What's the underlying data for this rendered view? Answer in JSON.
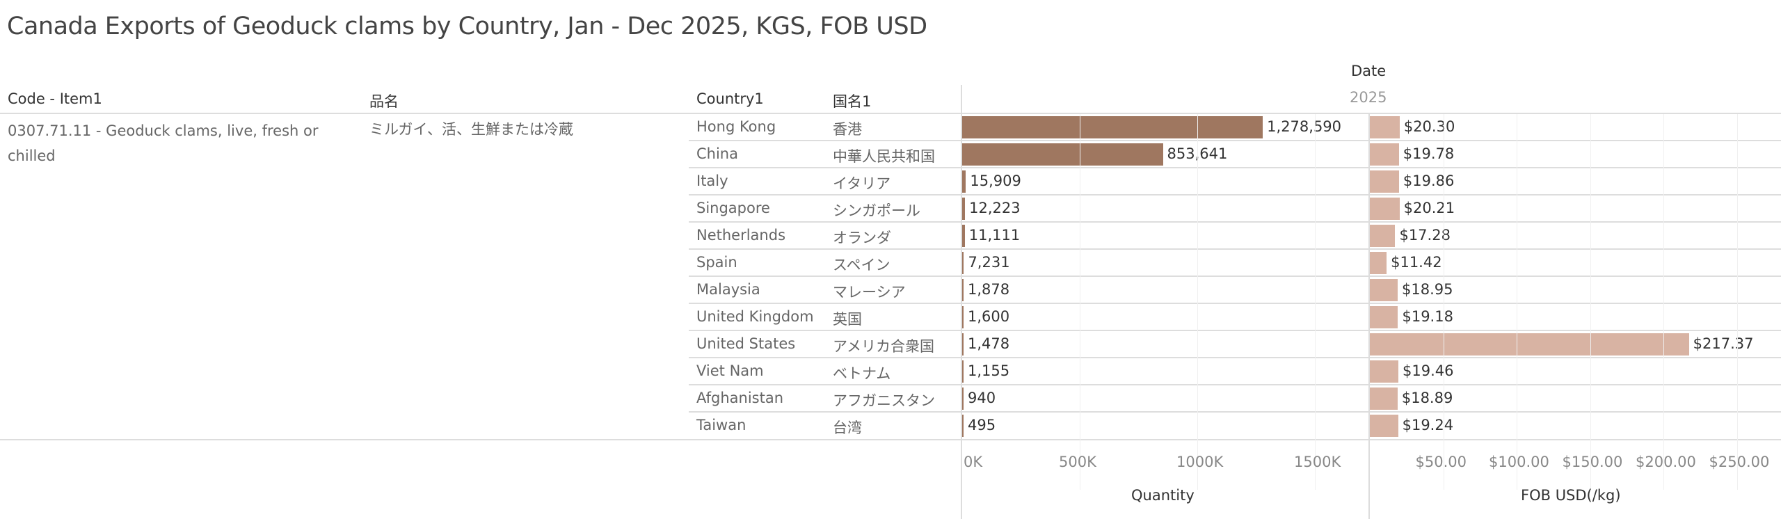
{
  "title": "Canada Exports of Geoduck clams by Country, Jan - Dec 2025, KGS, FOB USD",
  "headers": {
    "code": "Code - Item1",
    "hinmei": "品名",
    "country": "Country1",
    "kokumei": "国名1",
    "date": "Date",
    "year": "2025"
  },
  "item": {
    "code": "0307.71.11 - Geoduck clams, live, fresh or chilled",
    "hinmei": "ミルガイ、活、生鮮または冷蔵"
  },
  "colors": {
    "quantity": "#9f7760",
    "fob": "#d8b3a3"
  },
  "chart_data": {
    "type": "bar",
    "categories": [
      "Hong Kong",
      "China",
      "Italy",
      "Singapore",
      "Netherlands",
      "Spain",
      "Malaysia",
      "United Kingdom",
      "United States",
      "Viet Nam",
      "Afghanistan",
      "Taiwan"
    ],
    "categories_ja": [
      "香港",
      "中華人民共和国",
      "イタリア",
      "シンガポール",
      "オランダ",
      "スペイン",
      "マレーシア",
      "英国",
      "アメリカ合衆国",
      "ベトナム",
      "アフガニスタン",
      "台湾"
    ],
    "series": [
      {
        "name": "Quantity",
        "values": [
          1278590,
          853641,
          15909,
          12223,
          11111,
          7231,
          1878,
          1600,
          1478,
          1155,
          940,
          495
        ],
        "labels": [
          "1,278,590",
          "853,641",
          "15,909",
          "12,223",
          "11,111",
          "7,231",
          "1,878",
          "1,600",
          "1,478",
          "1,155",
          "940",
          "495"
        ],
        "ticks": [
          "0K",
          "500K",
          "1000K",
          "1500K"
        ],
        "tick_values": [
          0,
          500000,
          1000000,
          1500000
        ],
        "xlabel": "Quantity",
        "xlim": [
          0,
          1750000
        ]
      },
      {
        "name": "FOB USD(/kg)",
        "values": [
          20.3,
          19.78,
          19.86,
          20.21,
          17.28,
          11.42,
          18.95,
          19.18,
          217.37,
          19.46,
          18.89,
          19.24
        ],
        "labels": [
          "$20.30",
          "$19.78",
          "$19.86",
          "$20.21",
          "$17.28",
          "$11.42",
          "$18.95",
          "$19.18",
          "$217.37",
          "$19.46",
          "$18.89",
          "$19.24"
        ],
        "ticks": [
          "$50.00",
          "$100.00",
          "$150.00",
          "$200.00",
          "$250.00"
        ],
        "tick_values": [
          50,
          100,
          150,
          200,
          250
        ],
        "xlabel": "FOB USD(/kg)",
        "xlim": [
          0,
          280
        ]
      }
    ]
  }
}
